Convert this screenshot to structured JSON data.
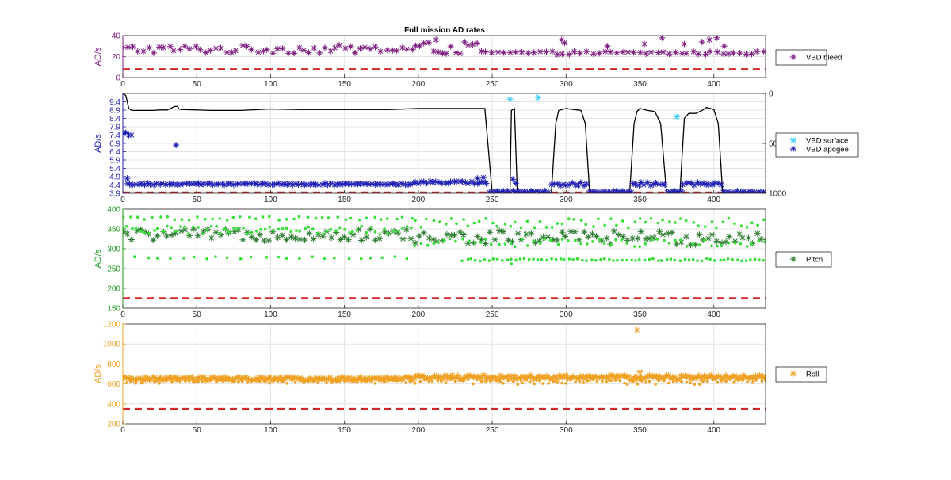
{
  "figure": {
    "title": "Full mission AD rates"
  },
  "chart_data": [
    {
      "id": "vbd_bleed",
      "type": "scatter",
      "xlim": [
        0,
        435
      ],
      "ylim": [
        0,
        40
      ],
      "xticks": [
        0,
        50,
        100,
        150,
        200,
        250,
        300,
        350,
        400
      ],
      "yticks": [
        0,
        20,
        40
      ],
      "ylabel": "AD/s",
      "axis_color": "#7E1E80",
      "grid": true,
      "legend": {
        "placement": "right",
        "entries": [
          {
            "name": "VBD bleed",
            "color": "#7E1E80",
            "marker": "star"
          }
        ]
      },
      "threshold": {
        "value": 8,
        "color": "#D62728",
        "style": "dashed"
      },
      "series": [
        {
          "name": "VBD bleed",
          "color": "#7E1E80",
          "marker": "star",
          "segments": [
            {
              "x": [
                0,
                197
              ],
              "base": 27,
              "amp": 4,
              "step": 3.5
            },
            {
              "x": [
                198,
                245
              ],
              "base": 28,
              "amp": 6,
              "step": 3
            },
            {
              "x": [
                246,
                435
              ],
              "base": 23.5,
              "amp": 1.5,
              "step": 4
            }
          ],
          "outliers": [
            [
              212,
              36
            ],
            [
              297,
              36
            ],
            [
              299,
              33
            ],
            [
              328,
              30
            ],
            [
              353,
              32
            ],
            [
              365,
              38
            ],
            [
              380,
              32
            ],
            [
              392,
              34
            ],
            [
              397,
              36
            ],
            [
              402,
              38
            ],
            [
              407,
              30
            ]
          ]
        }
      ]
    },
    {
      "id": "vbd_surface_apogee",
      "type": "line",
      "xlim": [
        0,
        435
      ],
      "ylim": [
        3.9,
        9.9
      ],
      "yticks": [
        3.9,
        4.4,
        4.9,
        5.4,
        5.9,
        6.4,
        6.9,
        7.4,
        7.9,
        8.4,
        8.9,
        9.4
      ],
      "xticks": [
        0,
        50,
        100,
        150,
        200,
        250,
        300,
        350,
        400
      ],
      "ylabel": "AD/s",
      "axis_color": "#1F1FB4",
      "y2lim": [
        0,
        1000
      ],
      "y2ticks": [
        0,
        500,
        1000
      ],
      "grid": true,
      "legend": {
        "placement": "right",
        "entries": [
          {
            "name": "VBD surface",
            "color": "#33CCFF",
            "marker": "star"
          },
          {
            "name": "VBD apogee",
            "color": "#1F1FB4",
            "marker": "star"
          }
        ]
      },
      "threshold": {
        "value": 3.95,
        "color": "#D62728",
        "style": "dashed"
      },
      "depth_profile": {
        "color": "#000000",
        "axis": "right",
        "points": [
          [
            0,
            0
          ],
          [
            2,
            20
          ],
          [
            4,
            150
          ],
          [
            6,
            170
          ],
          [
            8,
            170
          ],
          [
            10,
            170
          ],
          [
            15,
            170
          ],
          [
            20,
            170
          ],
          [
            25,
            165
          ],
          [
            30,
            165
          ],
          [
            35,
            130
          ],
          [
            37,
            130
          ],
          [
            38,
            155
          ],
          [
            40,
            160
          ],
          [
            60,
            170
          ],
          [
            80,
            170
          ],
          [
            100,
            155
          ],
          [
            120,
            160
          ],
          [
            150,
            160
          ],
          [
            180,
            160
          ],
          [
            200,
            150
          ],
          [
            220,
            150
          ],
          [
            245,
            150
          ],
          [
            250,
            1000
          ],
          [
            260,
            1000
          ],
          [
            262,
            1000
          ],
          [
            263,
            170
          ],
          [
            265,
            150
          ],
          [
            267,
            1000
          ],
          [
            290,
            1000
          ],
          [
            293,
            300
          ],
          [
            295,
            170
          ],
          [
            300,
            150
          ],
          [
            305,
            160
          ],
          [
            310,
            170
          ],
          [
            313,
            300
          ],
          [
            316,
            1000
          ],
          [
            343,
            1000
          ],
          [
            346,
            300
          ],
          [
            348,
            180
          ],
          [
            350,
            150
          ],
          [
            355,
            170
          ],
          [
            360,
            180
          ],
          [
            364,
            300
          ],
          [
            368,
            1000
          ],
          [
            377,
            1000
          ],
          [
            380,
            250
          ],
          [
            383,
            200
          ],
          [
            385,
            200
          ],
          [
            388,
            200
          ],
          [
            392,
            170
          ],
          [
            395,
            140
          ],
          [
            400,
            160
          ],
          [
            403,
            300
          ],
          [
            406,
            1000
          ],
          [
            435,
            1000
          ]
        ]
      },
      "series": [
        {
          "name": "VBD surface",
          "color": "#33CCFF",
          "marker": "star",
          "points": [
            [
              262,
              9.55
            ],
            [
              281,
              9.65
            ],
            [
              375,
              8.5
            ]
          ]
        },
        {
          "name": "VBD apogee",
          "color": "#1F1FB4",
          "marker": "star",
          "segments": [
            {
              "x": [
                3,
                197
              ],
              "base": 4.45,
              "amp": 0.05,
              "step": 2
            },
            {
              "x": [
                198,
                247
              ],
              "base": 4.55,
              "amp": 0.08,
              "step": 2
            },
            {
              "x": [
                248,
                289
              ],
              "base": 4.0,
              "amp": 0.05,
              "step": 2
            },
            {
              "x": [
                290,
                315
              ],
              "base": 4.45,
              "amp": 0.1,
              "step": 2
            },
            {
              "x": [
                316,
                344
              ],
              "base": 4.0,
              "amp": 0.05,
              "step": 2
            },
            {
              "x": [
                345,
                367
              ],
              "base": 4.45,
              "amp": 0.1,
              "step": 2
            },
            {
              "x": [
                368,
                378
              ],
              "base": 4.0,
              "amp": 0.05,
              "step": 2
            },
            {
              "x": [
                379,
                405
              ],
              "base": 4.45,
              "amp": 0.1,
              "step": 2
            },
            {
              "x": [
                406,
                435
              ],
              "base": 4.0,
              "amp": 0.05,
              "step": 2
            }
          ],
          "outliers": [
            [
              1,
              7.5
            ],
            [
              2,
              7.55
            ],
            [
              4,
              7.4
            ],
            [
              6,
              7.4
            ],
            [
              3,
              4.8
            ],
            [
              36,
              6.8
            ],
            [
              240,
              4.8
            ],
            [
              244,
              4.85
            ],
            [
              264,
              4.75
            ],
            [
              266,
              4.5
            ]
          ]
        }
      ]
    },
    {
      "id": "pitch",
      "type": "scatter",
      "xlim": [
        0,
        435
      ],
      "ylim": [
        150,
        400
      ],
      "xticks": [
        0,
        50,
        100,
        150,
        200,
        250,
        300,
        350,
        400
      ],
      "yticks": [
        150,
        200,
        250,
        300,
        350,
        400
      ],
      "ylabel": "AD/s",
      "axis_color": "#1E9A1E",
      "grid": true,
      "legend": {
        "placement": "right",
        "entries": [
          {
            "name": "Pitch",
            "color": "#2E7D32",
            "marker": "star"
          }
        ]
      },
      "threshold": {
        "value": 175,
        "color": "#D62728",
        "style": "dashed"
      },
      "series": [
        {
          "name": "Pitch",
          "color": "#2E7D32",
          "marker": "star",
          "segments": [
            {
              "x": [
                0,
                197
              ],
              "base": 335,
              "amp": 15,
              "step": 3
            },
            {
              "x": [
                198,
                435
              ],
              "base": 328,
              "amp": 18,
              "step": 3
            }
          ]
        },
        {
          "name": "",
          "color": "#34E034",
          "marker": "dot",
          "segments": [
            {
              "x": [
                0,
                197
              ],
              "base": 377,
              "amp": 5,
              "step": 5
            },
            {
              "x": [
                0,
                197
              ],
              "base": 347,
              "amp": 10,
              "step": 3
            },
            {
              "x": [
                0,
                197
              ],
              "base": 277,
              "amp": 3,
              "step": 8
            },
            {
              "x": [
                198,
                435
              ],
              "base": 365,
              "amp": 12,
              "step": 4
            },
            {
              "x": [
                198,
                435
              ],
              "base": 315,
              "amp": 10,
              "step": 4
            },
            {
              "x": [
                230,
                435
              ],
              "base": 272,
              "amp": 3,
              "step": 3
            }
          ],
          "outliers": [
            [
              263,
              262
            ]
          ]
        }
      ]
    },
    {
      "id": "roll",
      "type": "scatter",
      "xlim": [
        0,
        435
      ],
      "ylim": [
        200,
        1200
      ],
      "xticks": [
        0,
        50,
        100,
        150,
        200,
        250,
        300,
        350,
        400
      ],
      "yticks": [
        200,
        400,
        600,
        800,
        1000,
        1200
      ],
      "ylabel": "AD/s",
      "axis_color": "#F0A020",
      "grid": true,
      "legend": {
        "placement": "right",
        "entries": [
          {
            "name": "Roll",
            "color": "#F0A020",
            "marker": "star"
          }
        ]
      },
      "threshold": {
        "value": 350,
        "color": "#D62728",
        "style": "dashed"
      },
      "series": [
        {
          "name": "Roll",
          "color": "#F0A020",
          "marker": "star",
          "segments": [
            {
              "x": [
                0,
                197
              ],
              "base": 650,
              "amp": 18,
              "step": 1.2
            },
            {
              "x": [
                198,
                435
              ],
              "base": 665,
              "amp": 22,
              "step": 1.2
            }
          ],
          "outliers": [
            [
              348,
              1140
            ],
            [
              350,
              720
            ]
          ]
        },
        {
          "name": "",
          "color": "#F0A020",
          "marker": "dot",
          "segments": [
            {
              "x": [
                0,
                197
              ],
              "base": 625,
              "amp": 20,
              "step": 3
            },
            {
              "x": [
                198,
                435
              ],
              "base": 620,
              "amp": 25,
              "step": 3
            }
          ]
        }
      ]
    }
  ]
}
